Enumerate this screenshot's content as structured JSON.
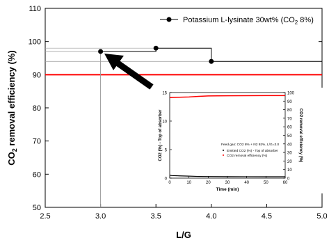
{
  "chart_data": [
    {
      "type": "line",
      "xlabel": "L/G",
      "ylabel_main": "CO",
      "ylabel_sub": "2",
      "ylabel_rest": " removal efficiency (%)",
      "xlim": [
        2.5,
        5.0
      ],
      "ylim": [
        50,
        110
      ],
      "xticks": [
        "2.5",
        "3.0",
        "3.5",
        "4.0",
        "4.5",
        "5.0"
      ],
      "yticks": [
        "50",
        "60",
        "70",
        "80",
        "90",
        "100",
        "110"
      ],
      "grid": false,
      "legend_position": "top-right",
      "series": [
        {
          "name": "Potassium L-lysinate 30wt% (CO2 8%)",
          "name_parts": [
            "Potassium L-lysinate 30wt% (CO",
            "2",
            " 8%)"
          ],
          "x": [
            3.0,
            3.5,
            4.0
          ],
          "y": [
            97,
            98,
            94
          ],
          "color": "#000000"
        }
      ],
      "reference_line": {
        "y": 90,
        "color": "#ff0000"
      },
      "dropline_x": 3.0
    },
    {
      "type": "line",
      "xlabel": "Time (min)",
      "ylabel_left": "CO2 (%) - Top of absorber",
      "ylabel_right": "CO2 removal efficiency (%)",
      "xlim": [
        0,
        60
      ],
      "ylim_left": [
        0,
        15
      ],
      "ylim_right": [
        0,
        100
      ],
      "xticks": [
        "0",
        "10",
        "20",
        "30",
        "40",
        "50",
        "60"
      ],
      "yticks_left": [
        "0",
        "5",
        "10",
        "15"
      ],
      "yticks_right": [
        "0",
        "10",
        "20",
        "30",
        "40",
        "50",
        "60",
        "70",
        "80",
        "90",
        "100"
      ],
      "annotation": "Feed gas: CO2 8% + N2 92%, L/G=3.0",
      "legend": [
        "Emitted CO2 (%) - Top of absorber",
        "CO2 removal efficiency (%)"
      ],
      "series": [
        {
          "name": "Emitted CO2 (%) - Top of absorber",
          "axis": "left",
          "x": [
            0,
            1,
            5,
            10,
            15,
            20,
            30,
            40,
            50,
            60
          ],
          "y": [
            0.5,
            0.45,
            0.4,
            0.35,
            0.3,
            0.28,
            0.26,
            0.25,
            0.24,
            0.24
          ],
          "color": "#000000"
        },
        {
          "name": "CO2 removal efficiency (%)",
          "axis": "right",
          "x": [
            0,
            1,
            5,
            10,
            15,
            20,
            30,
            40,
            50,
            60
          ],
          "y": [
            94,
            94.2,
            94.5,
            94.8,
            95.5,
            96,
            96.2,
            96.3,
            96.4,
            96.4
          ],
          "color": "#ff0000"
        }
      ]
    }
  ]
}
